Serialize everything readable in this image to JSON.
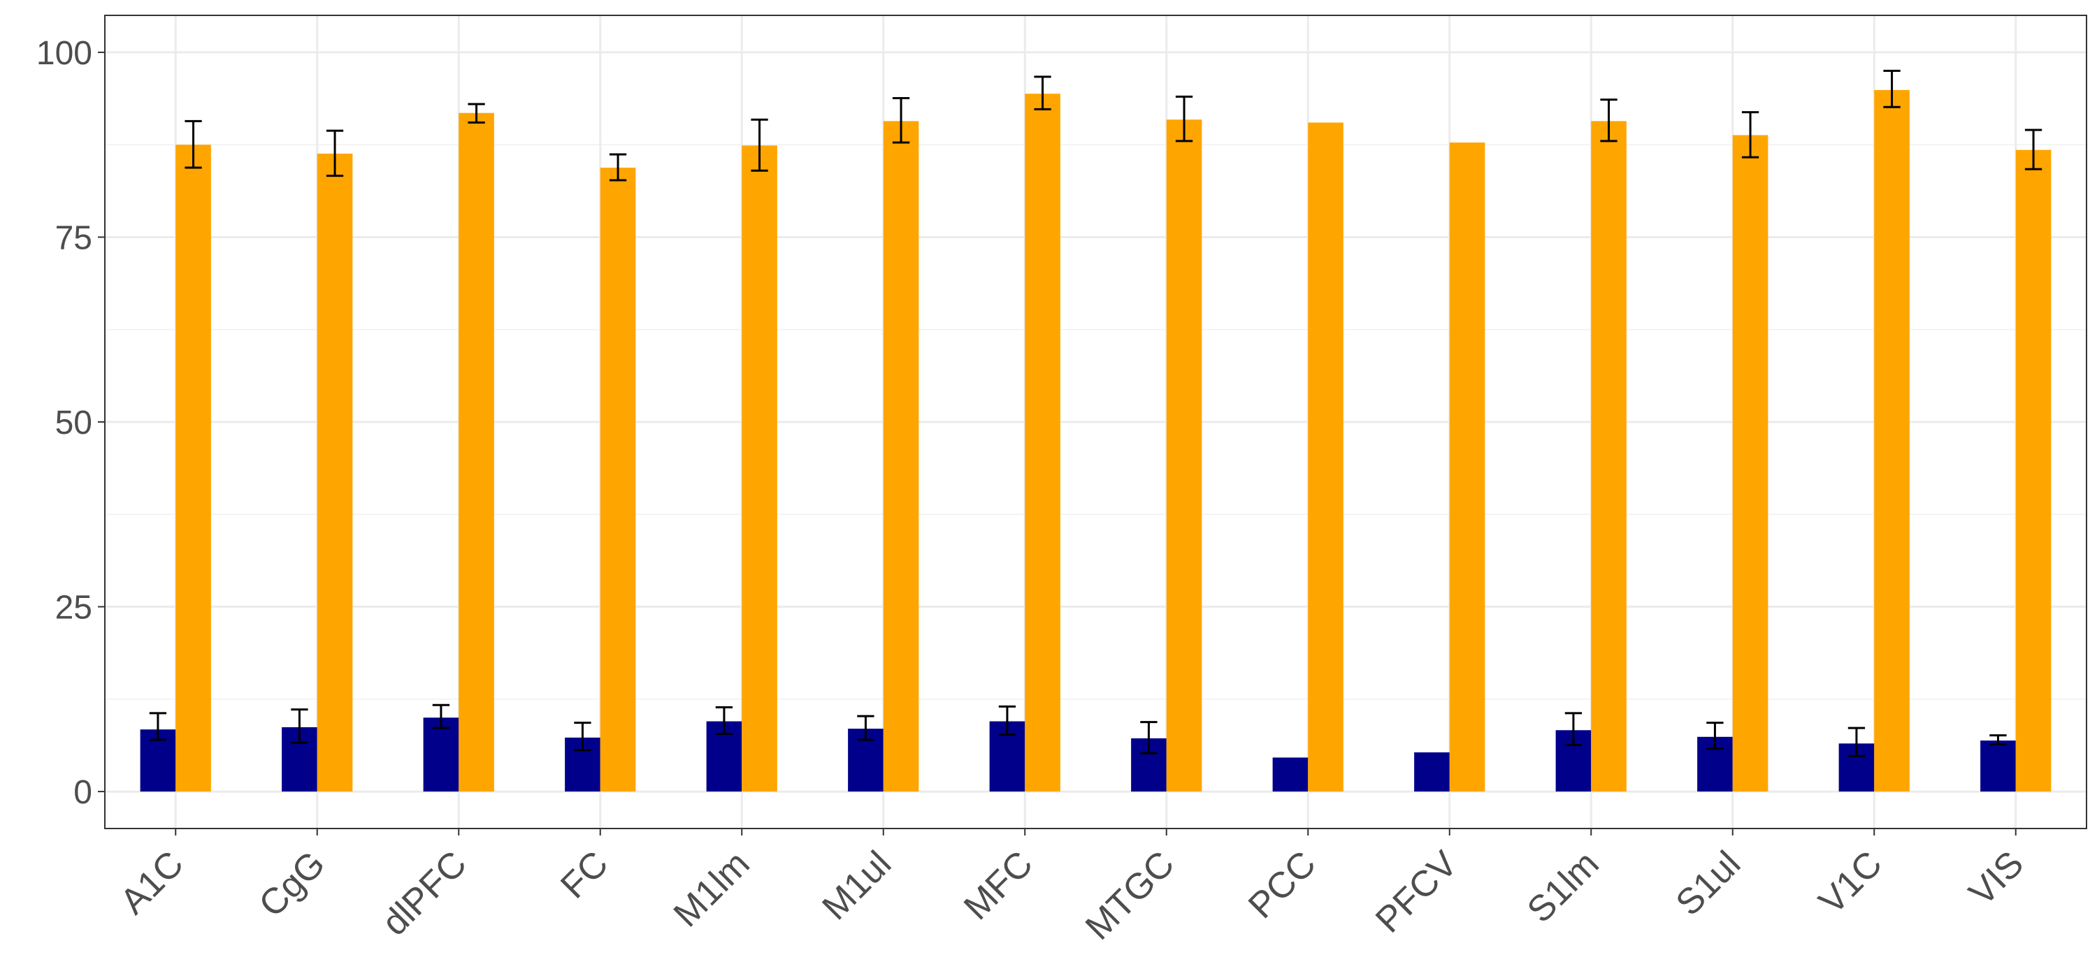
{
  "chart_data": {
    "type": "bar",
    "title": "",
    "xlabel": "",
    "ylabel": "",
    "ylim": [
      -5,
      105
    ],
    "yticks": [
      0,
      25,
      50,
      75,
      100
    ],
    "grid": true,
    "legend": "none",
    "categories": [
      "A1C",
      "CgG",
      "dlPFC",
      "FC",
      "M1lm",
      "M1ul",
      "MFC",
      "MTGC",
      "PCC",
      "PFCV",
      "S1lm",
      "S1ul",
      "V1C",
      "VIS"
    ],
    "series": [
      {
        "color": "#00008B",
        "values": [
          8.4,
          8.7,
          10.0,
          7.3,
          9.5,
          8.5,
          9.5,
          7.2,
          4.6,
          5.3,
          8.3,
          7.4,
          6.5,
          6.9
        ],
        "err_low": [
          7.0,
          6.6,
          8.6,
          5.6,
          7.8,
          7.0,
          7.7,
          5.2,
          null,
          null,
          6.3,
          5.8,
          4.8,
          6.4
        ],
        "err_high": [
          10.6,
          11.1,
          11.7,
          9.3,
          11.4,
          10.2,
          11.5,
          9.4,
          null,
          null,
          10.6,
          9.3,
          8.6,
          7.6
        ]
      },
      {
        "color": "#FFA500",
        "values": [
          87.5,
          86.3,
          91.8,
          84.4,
          87.4,
          90.7,
          94.4,
          90.9,
          90.5,
          87.8,
          90.7,
          88.8,
          94.9,
          86.8
        ],
        "err_low": [
          84.4,
          83.3,
          90.5,
          82.7,
          84.0,
          87.8,
          92.3,
          88.0,
          null,
          null,
          88.0,
          85.8,
          92.6,
          84.2
        ],
        "err_high": [
          90.7,
          89.4,
          93.0,
          86.2,
          90.9,
          93.8,
          96.7,
          94.0,
          null,
          null,
          93.6,
          91.9,
          97.5,
          89.5
        ]
      }
    ]
  }
}
